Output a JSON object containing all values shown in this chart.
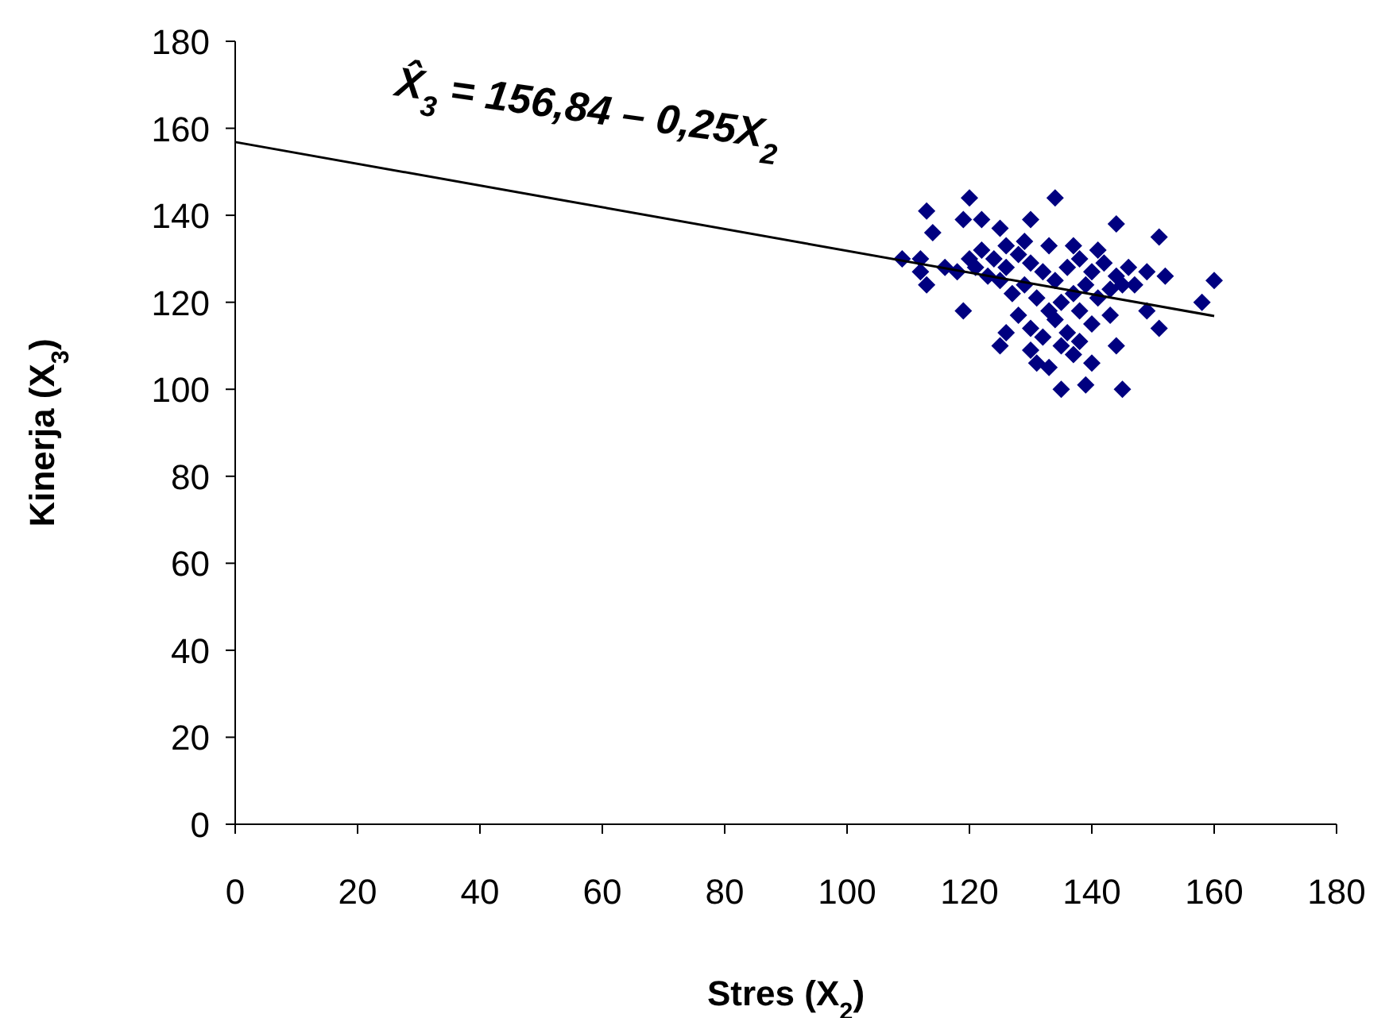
{
  "chart_data": {
    "type": "scatter",
    "xlabel": "Stres (X$_{2}$)",
    "ylabel": "Kinerja (X$_{3}$)",
    "xlim": [
      0,
      180
    ],
    "ylim": [
      0,
      180
    ],
    "xticks": [
      0,
      20,
      40,
      60,
      80,
      100,
      120,
      140,
      160,
      180
    ],
    "yticks": [
      0,
      20,
      40,
      60,
      80,
      100,
      120,
      140,
      160,
      180
    ],
    "grid": false,
    "annotations": [
      "X̂$_{3}$ = 156,84 – 0,25X$_{2}$"
    ],
    "series": [
      {
        "color": "#000080",
        "marker": "diamond",
        "x": [
          120,
          134,
          113,
          119,
          122,
          130,
          144,
          114,
          125,
          151,
          109,
          112,
          112,
          113,
          119,
          160,
          158,
          151,
          149,
          126,
          125,
          133,
          135,
          139,
          145,
          140,
          144,
          137,
          152,
          149,
          145,
          143,
          130,
          122,
          124,
          126,
          128,
          130,
          132,
          134,
          136,
          138,
          140,
          142,
          144,
          121,
          125,
          127,
          129,
          131,
          133,
          135,
          137,
          139,
          141,
          143,
          128,
          130,
          132,
          134,
          136,
          138,
          140,
          126,
          129,
          133,
          137,
          141,
          123,
          146,
          147,
          135,
          131,
          138,
          120,
          118,
          116
        ],
        "values": [
          144,
          144,
          141,
          139,
          139,
          139,
          138,
          136,
          137,
          135,
          130,
          130,
          127,
          124,
          118,
          125,
          120,
          114,
          118,
          113,
          110,
          105,
          100,
          101,
          100,
          106,
          110,
          108,
          126,
          127,
          124,
          117,
          109,
          132,
          130,
          128,
          131,
          129,
          127,
          125,
          128,
          130,
          127,
          129,
          126,
          128,
          125,
          122,
          124,
          121,
          118,
          120,
          122,
          124,
          121,
          123,
          117,
          114,
          112,
          116,
          113,
          118,
          115,
          133,
          134,
          133,
          133,
          132,
          126,
          128,
          124,
          110,
          106,
          111,
          130,
          127,
          128
        ]
      },
      {
        "type": "line",
        "color": "#000000",
        "marker": "none",
        "x": [
          0,
          160
        ],
        "values": [
          156.84,
          116.84
        ]
      }
    ]
  }
}
